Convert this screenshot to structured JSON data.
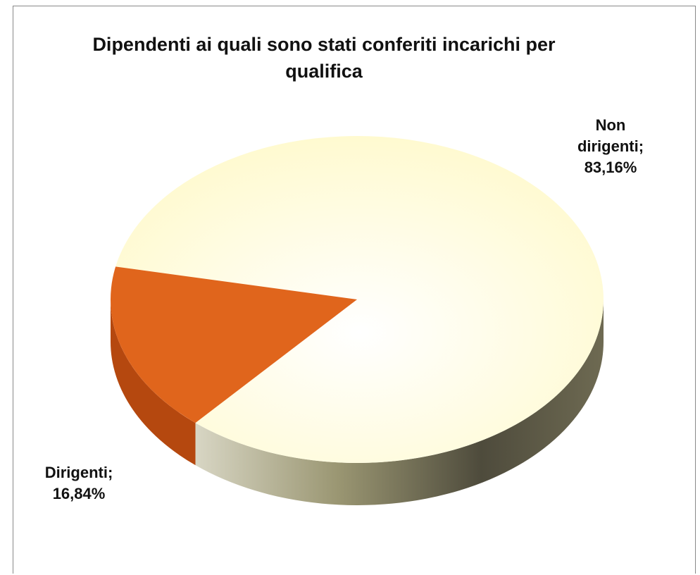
{
  "chart_data": {
    "type": "pie",
    "title": "Dipendenti ai quali sono stati conferiti incarichi per qualifica",
    "categories": [
      "Non dirigenti",
      "Dirigenti"
    ],
    "values": [
      83.16,
      16.84
    ],
    "value_labels": [
      "83,16%",
      "16,84%"
    ],
    "colors": [
      "#fffbd8",
      "#e0651c"
    ],
    "side_colors": [
      "#6e6a52",
      "#b5480f"
    ]
  }
}
